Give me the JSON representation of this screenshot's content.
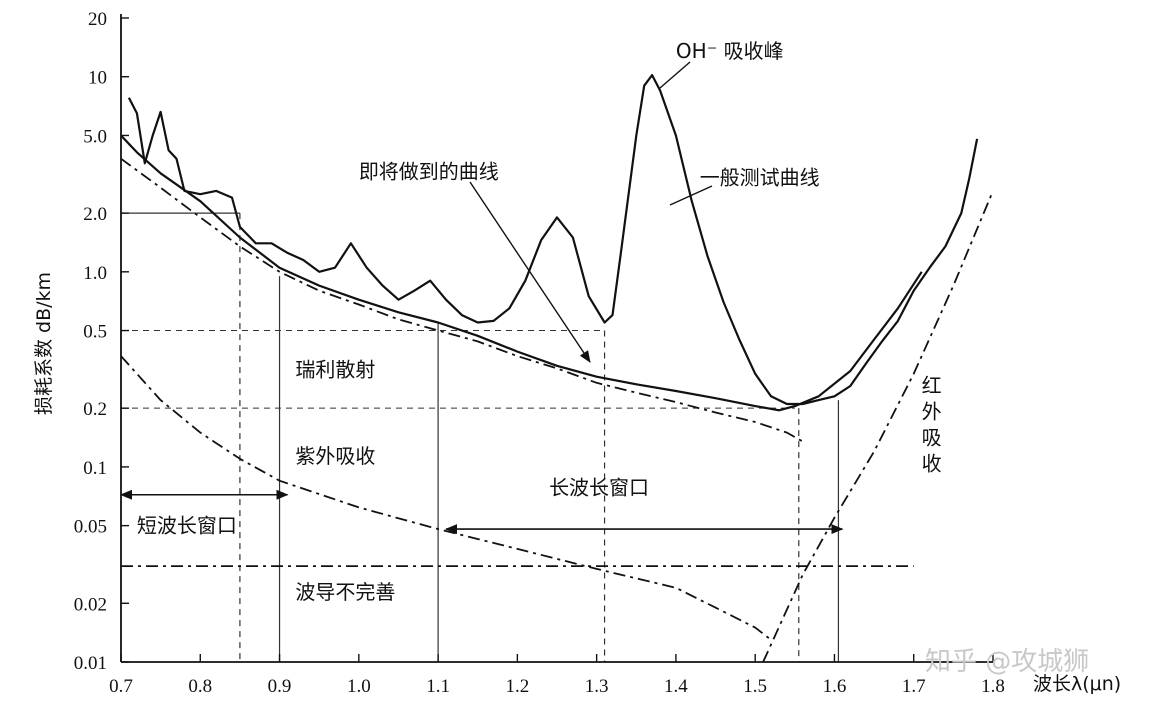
{
  "chart_data": {
    "type": "line",
    "xlabel": "波长λ(μn)",
    "ylabel": "损耗系数 dB/km",
    "xlim": [
      0.7,
      1.8
    ],
    "ylim": [
      0.01,
      20
    ],
    "y_scale": "log",
    "x_ticks": [
      "0.7",
      "0.8",
      "0.9",
      "1.0",
      "1.1",
      "1.2",
      "1.3",
      "1.4",
      "1.5",
      "1.6",
      "1.7",
      "1.8"
    ],
    "x_tick_values": [
      0.7,
      0.8,
      0.9,
      1.0,
      1.1,
      1.2,
      1.3,
      1.4,
      1.5,
      1.6,
      1.7,
      1.8
    ],
    "y_ticks": [
      "0.01",
      "0.02",
      "0.05",
      "0.1",
      "0.2",
      "0.5",
      "1.0",
      "2.0",
      "5.0",
      "10",
      "20"
    ],
    "y_tick_values": [
      0.01,
      0.02,
      0.05,
      0.1,
      0.2,
      0.5,
      1.0,
      2.0,
      5.0,
      10,
      20
    ],
    "series": [
      {
        "style": "solid",
        "points": [
          [
            0.71,
            7.8
          ],
          [
            0.72,
            6.5
          ],
          [
            0.73,
            3.6
          ],
          [
            0.74,
            5.0
          ],
          [
            0.75,
            6.6
          ],
          [
            0.76,
            4.2
          ],
          [
            0.77,
            3.8
          ],
          [
            0.78,
            2.6
          ],
          [
            0.8,
            2.5
          ],
          [
            0.82,
            2.6
          ],
          [
            0.84,
            2.4
          ],
          [
            0.85,
            1.7
          ],
          [
            0.87,
            1.4
          ],
          [
            0.89,
            1.4
          ],
          [
            0.91,
            1.25
          ],
          [
            0.93,
            1.15
          ],
          [
            0.95,
            1.0
          ],
          [
            0.97,
            1.05
          ],
          [
            0.99,
            1.4
          ],
          [
            1.01,
            1.05
          ],
          [
            1.03,
            0.85
          ],
          [
            1.05,
            0.72
          ],
          [
            1.07,
            0.8
          ],
          [
            1.09,
            0.9
          ],
          [
            1.11,
            0.72
          ],
          [
            1.13,
            0.6
          ],
          [
            1.15,
            0.55
          ],
          [
            1.17,
            0.56
          ],
          [
            1.19,
            0.65
          ],
          [
            1.21,
            0.9
          ],
          [
            1.23,
            1.45
          ],
          [
            1.25,
            1.9
          ],
          [
            1.27,
            1.5
          ],
          [
            1.29,
            0.75
          ],
          [
            1.31,
            0.55
          ],
          [
            1.32,
            0.6
          ],
          [
            1.33,
            1.2
          ],
          [
            1.35,
            5.0
          ],
          [
            1.36,
            9.0
          ],
          [
            1.37,
            10.2
          ],
          [
            1.38,
            8.5
          ],
          [
            1.4,
            5.0
          ],
          [
            1.42,
            2.3
          ],
          [
            1.44,
            1.2
          ],
          [
            1.46,
            0.7
          ],
          [
            1.48,
            0.45
          ],
          [
            1.5,
            0.3
          ],
          [
            1.52,
            0.23
          ],
          [
            1.54,
            0.21
          ],
          [
            1.56,
            0.21
          ],
          [
            1.58,
            0.22
          ],
          [
            1.6,
            0.23
          ],
          [
            1.62,
            0.26
          ],
          [
            1.64,
            0.34
          ],
          [
            1.66,
            0.44
          ],
          [
            1.68,
            0.56
          ],
          [
            1.7,
            0.8
          ],
          [
            1.72,
            1.05
          ],
          [
            1.74,
            1.35
          ],
          [
            1.76,
            2.0
          ],
          [
            1.77,
            3.0
          ],
          [
            1.78,
            4.8
          ]
        ]
      },
      {
        "style": "solid",
        "points": [
          [
            0.7,
            5.0
          ],
          [
            0.72,
            4.1
          ],
          [
            0.75,
            3.2
          ],
          [
            0.8,
            2.3
          ],
          [
            0.85,
            1.5
          ],
          [
            0.9,
            1.05
          ],
          [
            0.95,
            0.85
          ],
          [
            1.0,
            0.72
          ],
          [
            1.05,
            0.62
          ],
          [
            1.1,
            0.55
          ],
          [
            1.15,
            0.47
          ],
          [
            1.2,
            0.39
          ],
          [
            1.25,
            0.33
          ],
          [
            1.3,
            0.29
          ],
          [
            1.35,
            0.265
          ],
          [
            1.4,
            0.245
          ],
          [
            1.45,
            0.225
          ],
          [
            1.5,
            0.205
          ],
          [
            1.53,
            0.195
          ],
          [
            1.55,
            0.205
          ],
          [
            1.58,
            0.23
          ],
          [
            1.62,
            0.31
          ],
          [
            1.65,
            0.45
          ],
          [
            1.68,
            0.65
          ],
          [
            1.71,
            1.0
          ]
        ]
      },
      {
        "style": "dashdot",
        "points": [
          [
            0.7,
            3.8
          ],
          [
            0.75,
            2.7
          ],
          [
            0.8,
            1.9
          ],
          [
            0.85,
            1.35
          ],
          [
            0.9,
            1.0
          ],
          [
            0.95,
            0.8
          ],
          [
            1.0,
            0.68
          ],
          [
            1.05,
            0.57
          ],
          [
            1.1,
            0.5
          ],
          [
            1.15,
            0.44
          ],
          [
            1.2,
            0.37
          ],
          [
            1.25,
            0.32
          ],
          [
            1.3,
            0.27
          ],
          [
            1.35,
            0.24
          ],
          [
            1.4,
            0.215
          ],
          [
            1.45,
            0.19
          ],
          [
            1.5,
            0.17
          ],
          [
            1.54,
            0.15
          ],
          [
            1.56,
            0.135
          ]
        ]
      },
      {
        "style": "dashdot",
        "points": [
          [
            0.7,
            0.37
          ],
          [
            0.75,
            0.22
          ],
          [
            0.8,
            0.15
          ],
          [
            0.85,
            0.11
          ],
          [
            0.9,
            0.085
          ],
          [
            1.0,
            0.062
          ],
          [
            1.1,
            0.048
          ],
          [
            1.2,
            0.038
          ],
          [
            1.3,
            0.03
          ],
          [
            1.4,
            0.024
          ],
          [
            1.45,
            0.019
          ],
          [
            1.5,
            0.015
          ],
          [
            1.52,
            0.013
          ]
        ]
      },
      {
        "style": "dashdot",
        "points": [
          [
            1.51,
            0.01
          ],
          [
            1.56,
            0.028
          ],
          [
            1.6,
            0.055
          ],
          [
            1.65,
            0.12
          ],
          [
            1.7,
            0.3
          ],
          [
            1.75,
            0.85
          ],
          [
            1.8,
            2.6
          ]
        ]
      },
      {
        "style": "dashdot",
        "points": [
          [
            0.7,
            0.031
          ],
          [
            1.7,
            0.031
          ]
        ]
      }
    ],
    "annotations": [
      {
        "text": "OH⁻ 吸收峰",
        "x": 1.4,
        "y": 12.5
      },
      {
        "text": "即将做到的曲线",
        "x": 1.0,
        "y": 3.0
      },
      {
        "text": "一般测试曲线",
        "x": 1.43,
        "y": 2.8
      },
      {
        "text": "瑞利散射",
        "x": 0.92,
        "y": 0.29
      },
      {
        "text": "紫外吸收",
        "x": 0.92,
        "y": 0.105
      },
      {
        "text": "长波长窗口",
        "x": 1.24,
        "y": 0.072
      },
      {
        "text": "短波长窗口",
        "x": 0.72,
        "y": 0.046
      },
      {
        "text": "波导不完善",
        "x": 0.92,
        "y": 0.021
      },
      {
        "text": "红外吸收",
        "x": 1.71,
        "y": 0.24
      }
    ],
    "windows": [
      {
        "label": "短波长窗口",
        "from": 0.7,
        "to": 0.91,
        "y": 0.072
      },
      {
        "label": "长波长窗口",
        "from": 1.11,
        "to": 1.61,
        "y": 0.048
      }
    ]
  },
  "watermark": "知乎 @攻城狮"
}
